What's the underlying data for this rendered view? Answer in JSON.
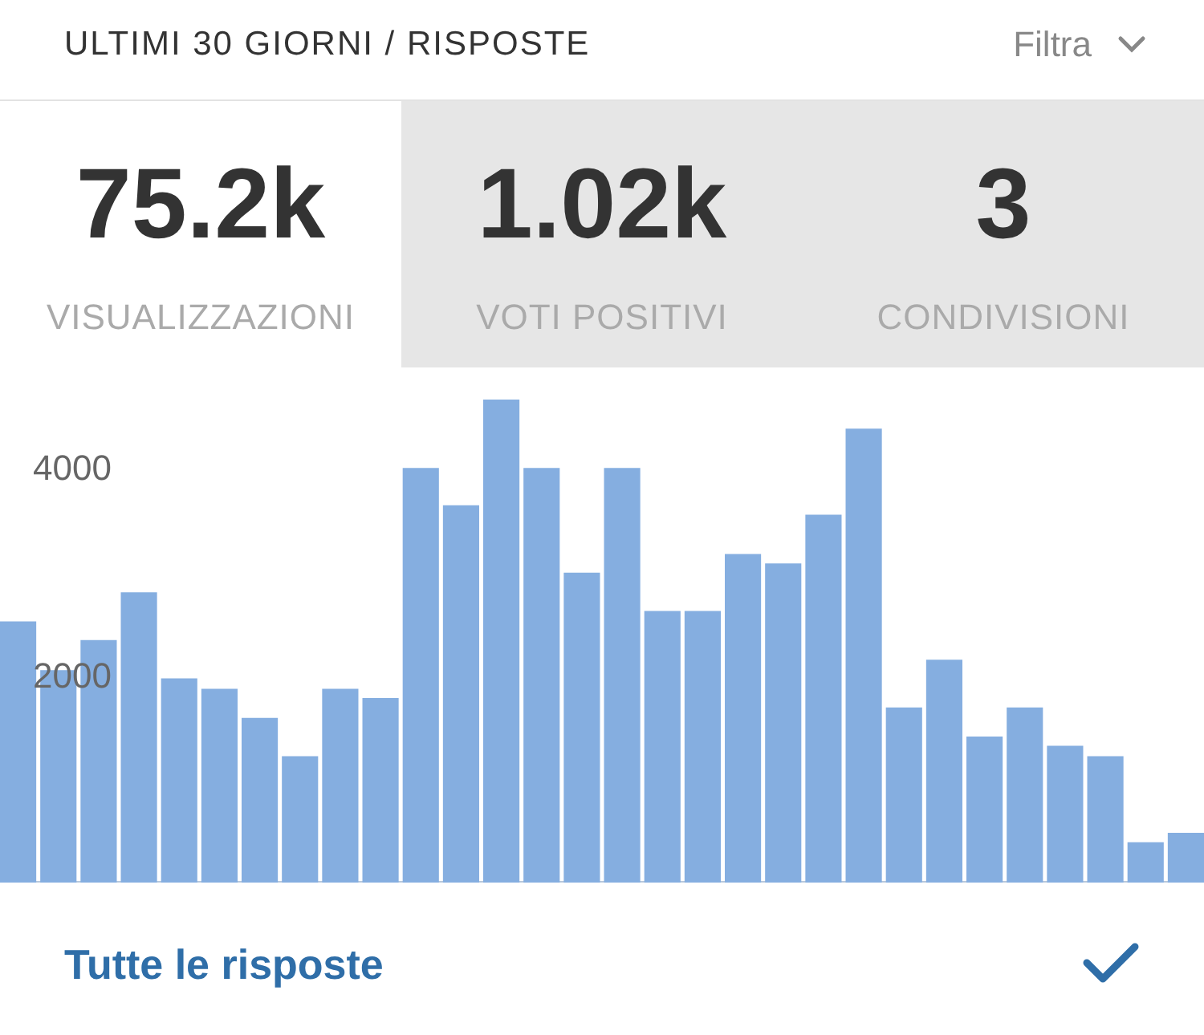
{
  "chart_data": {
    "type": "bar",
    "title": "ULTIMI 30 GIORNI / RISPOSTE",
    "annotations": [
      "Filtra",
      "75.2k",
      "VISUALIZZAZIONI",
      "1.02k",
      "VOTI POSITIVI",
      "3",
      "CONDIVISIONI",
      "Tutte le risposte"
    ],
    "categories": [
      null,
      null,
      null,
      null,
      null,
      null,
      null,
      null,
      null,
      null,
      null,
      null,
      null,
      null,
      null,
      null,
      null,
      null,
      null,
      null,
      null,
      null,
      null,
      null,
      null,
      null,
      null,
      null,
      null,
      null
    ],
    "values": [
      2520,
      2050,
      2340,
      2800,
      1970,
      1870,
      1590,
      1220,
      1870,
      1780,
      4000,
      3640,
      4660,
      4000,
      2990,
      4000,
      2620,
      2620,
      3170,
      3080,
      3550,
      4380,
      1690,
      2150,
      1410,
      1690,
      1320,
      1220,
      390,
      480
    ],
    "color": "#85aee0",
    "ylim": [
      0,
      4800
    ],
    "yticks": [
      2000,
      4000
    ],
    "grid": false
  }
}
